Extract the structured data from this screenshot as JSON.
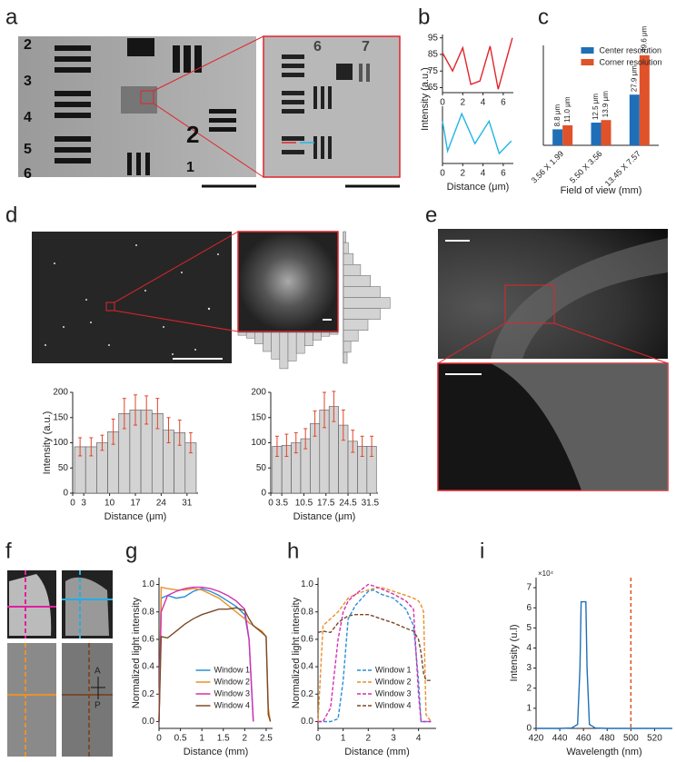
{
  "panels": [
    "a",
    "b",
    "c",
    "d",
    "e",
    "f",
    "g",
    "h",
    "i"
  ],
  "image_text": {
    "a": [
      "2",
      "3",
      "4",
      "5",
      "6",
      "2",
      "1"
    ],
    "a_inset": [
      "6",
      "7"
    ],
    "f": [
      "A",
      "P"
    ]
  },
  "chart_data": [
    {
      "type": "line",
      "x": [
        0,
        1,
        2,
        2.8,
        3.7,
        4.7,
        5.5,
        6.9
      ],
      "series": [
        {
          "color": "#e0252b",
          "values": [
            86,
            75,
            89,
            67,
            69,
            90,
            64,
            95
          ]
        }
      ],
      "xlim": [
        0,
        7
      ],
      "ylim": [
        62,
        97
      ],
      "xticks": [
        0,
        2,
        4,
        6
      ],
      "yticks": [
        65,
        75,
        85,
        95
      ]
    },
    {
      "type": "line",
      "x": [
        0,
        0.5,
        1.9,
        3.2,
        4.6,
        5.6,
        6.8
      ],
      "series": [
        {
          "color": "#22b5e6",
          "values": [
            87,
            75,
            90,
            78,
            87,
            74,
            79
          ]
        }
      ],
      "xlim": [
        0,
        7
      ],
      "ylim": [
        70,
        93
      ],
      "xticks": [
        0,
        2,
        4,
        6
      ],
      "xlabel": "Distance (μm)",
      "ylabel": "Intensity (a.u.)"
    },
    {
      "type": "bar",
      "categories": [
        "3.56 X 1.99",
        "5.50 X 3.56",
        "13.45 X 7.57"
      ],
      "series": [
        {
          "name": "Center resolution",
          "color": "#1f6fb8",
          "values": [
            8.8,
            12.5,
            27.9
          ],
          "value_labels": [
            "8.8 μm",
            "12.5 μm",
            "27.9 μm"
          ]
        },
        {
          "name": "Corner resolution",
          "color": "#e0522a",
          "values": [
            11.0,
            13.9,
            49.6
          ],
          "value_labels": [
            "11.0 μm",
            "13.9 μm",
            "49.6 μm"
          ]
        }
      ],
      "ylim": [
        0,
        55
      ],
      "xlabel": "Field of view (mm)",
      "legend": "upper center"
    },
    {
      "type": "bar",
      "orientation": "horizontal",
      "values": [
        2,
        4,
        8,
        14,
        22,
        30,
        38,
        30,
        20,
        12,
        6,
        3
      ],
      "xlim": [
        0,
        40
      ],
      "color": "#d3d3d3"
    },
    {
      "type": "bar",
      "direction": "down",
      "values": [
        3,
        6,
        12,
        20,
        28,
        38,
        30,
        22,
        14,
        8,
        4,
        2
      ],
      "ylim": [
        0,
        40
      ],
      "color": "#d3d3d3"
    },
    {
      "type": "bar",
      "x": [
        2,
        5,
        8,
        11,
        14,
        17,
        20,
        23,
        26,
        29,
        32
      ],
      "values": [
        92,
        92,
        100,
        122,
        158,
        165,
        165,
        158,
        125,
        120,
        100
      ],
      "errors": [
        18,
        18,
        15,
        25,
        30,
        30,
        28,
        30,
        25,
        25,
        20
      ],
      "color": "#d3d3d3",
      "error_color": "#e0452b",
      "xlim": [
        0,
        34
      ],
      "ylim": [
        0,
        200
      ],
      "xticks": [
        0,
        3,
        10,
        17,
        24,
        31
      ],
      "yticks": [
        0,
        50,
        100,
        150,
        200
      ],
      "xlabel": "Distance (μm)",
      "ylabel": "Intensity (a.u.)"
    },
    {
      "type": "bar",
      "x": [
        2,
        5,
        8,
        11,
        14,
        17,
        20,
        23,
        26,
        29,
        32
      ],
      "values": [
        93,
        95,
        100,
        108,
        138,
        165,
        172,
        135,
        103,
        93,
        93
      ],
      "errors": [
        20,
        22,
        20,
        20,
        25,
        35,
        30,
        30,
        22,
        20,
        20
      ],
      "color": "#d3d3d3",
      "error_color": "#e0452b",
      "xlim": [
        0,
        34
      ],
      "ylim": [
        0,
        200
      ],
      "xticks": [
        0,
        3.5,
        10.5,
        17.5,
        24.5,
        31.5
      ],
      "yticks": [
        0,
        50,
        100,
        150,
        200
      ],
      "xlabel": "Distance (μm)"
    },
    {
      "type": "line",
      "x": [
        0,
        0.05,
        0.2,
        0.4,
        0.6,
        0.8,
        1.0,
        1.2,
        1.4,
        1.6,
        1.8,
        2.0,
        2.1,
        2.2,
        2.4,
        2.5,
        2.55,
        2.6
      ],
      "series": [
        {
          "name": "Window 1",
          "color": "#2a8fd6",
          "values": [
            0,
            0.9,
            0.92,
            0.9,
            0.91,
            0.95,
            0.97,
            0.95,
            0.92,
            0.88,
            0.84,
            0.78,
            0.6,
            0,
            null,
            null,
            null,
            null
          ]
        },
        {
          "name": "Window 2",
          "color": "#e8912c",
          "values": [
            0,
            0.98,
            0.97,
            0.96,
            0.96,
            0.97,
            0.96,
            0.93,
            0.9,
            0.85,
            0.8,
            0.75,
            0.72,
            0.7,
            0.66,
            0.62,
            0.1,
            0
          ]
        },
        {
          "name": "Window 3",
          "color": "#d62fb0",
          "values": [
            0,
            0.8,
            0.92,
            0.95,
            0.97,
            0.98,
            0.98,
            0.97,
            0.95,
            0.92,
            0.88,
            0.82,
            0.6,
            0,
            null,
            null,
            null,
            null
          ]
        },
        {
          "name": "Window 4",
          "color": "#7a4a2a",
          "values": [
            0,
            0.62,
            0.61,
            0.66,
            0.71,
            0.75,
            0.78,
            0.8,
            0.82,
            0.82,
            0.83,
            0.81,
            0.75,
            0.7,
            0.65,
            0.62,
            0.05,
            0
          ]
        }
      ],
      "xlim": [
        0,
        2.65
      ],
      "ylim": [
        -0.05,
        1.05
      ],
      "xticks": [
        0,
        0.5,
        1,
        1.5,
        2,
        2.5
      ],
      "yticks": [
        {
          "value": 0,
          "label": "0.0"
        },
        0.2,
        0.4,
        0.6,
        0.8,
        {
          "value": 1,
          "label": "1.0"
        }
      ],
      "xlabel": "Distance (mm)",
      "ylabel": "Normalized light intensity",
      "legend": "lower center"
    },
    {
      "type": "line",
      "dashed": true,
      "x": [
        0,
        0.2,
        0.5,
        0.8,
        1.0,
        1.2,
        1.5,
        2.0,
        2.2,
        2.5,
        3.0,
        3.5,
        3.8,
        4.0,
        4.1,
        4.2,
        4.3,
        4.5
      ],
      "series": [
        {
          "name": "Window 1",
          "color": "#2a8fd6",
          "values": [
            0,
            0,
            0,
            0.02,
            0.3,
            0.75,
            0.85,
            0.95,
            0.96,
            0.93,
            0.9,
            0.82,
            0.7,
            0.3,
            0,
            0,
            0,
            0
          ]
        },
        {
          "name": "Window 2",
          "color": "#e8912c",
          "values": [
            0,
            0.7,
            0.75,
            0.8,
            0.85,
            0.9,
            0.93,
            0.96,
            0.97,
            0.98,
            0.95,
            0.92,
            0.9,
            0.88,
            0.85,
            0.8,
            0.05,
            0
          ]
        },
        {
          "name": "Window 3",
          "color": "#d62fb0",
          "values": [
            0,
            0,
            0.1,
            0.6,
            0.8,
            0.88,
            0.93,
            1.0,
            0.99,
            0.97,
            0.93,
            0.88,
            0.82,
            0.2,
            0,
            0,
            0,
            0
          ]
        },
        {
          "name": "Window 4",
          "color": "#7a4a2a",
          "values": [
            0.65,
            0.66,
            0.65,
            0.72,
            0.75,
            0.77,
            0.78,
            0.78,
            0.77,
            0.75,
            0.72,
            0.68,
            0.66,
            0.6,
            0.5,
            0.35,
            0.3,
            0.3
          ]
        }
      ],
      "xlim": [
        0,
        4.7
      ],
      "ylim": [
        -0.05,
        1.05
      ],
      "xticks": [
        0,
        1,
        2,
        3,
        4
      ],
      "yticks": [
        {
          "value": 0,
          "label": "0.0"
        },
        0.2,
        0.4,
        0.6,
        0.8,
        {
          "value": 1,
          "label": "1.0"
        }
      ],
      "xlabel": "Distance (mm)",
      "ylabel": "Normalized light intensity",
      "legend": "lower center"
    },
    {
      "type": "line",
      "x": [
        420,
        440,
        450,
        455,
        457,
        458,
        460,
        462,
        463,
        465,
        470,
        480,
        500,
        535
      ],
      "series": [
        {
          "color": "#1f6fb8",
          "values": [
            0,
            0,
            200,
            2000,
            30000,
            63000,
            63000,
            63000,
            30000,
            2000,
            200,
            0,
            0,
            0
          ]
        }
      ],
      "vlines": [
        {
          "x": 500,
          "color": "#d9541e"
        }
      ],
      "xlim": [
        420,
        535
      ],
      "ylim": [
        0,
        75000
      ],
      "xticks": [
        420,
        440,
        460,
        480,
        500,
        520
      ],
      "yticks": [
        0,
        {
          "value": 10000,
          "label": "1"
        },
        {
          "value": 20000,
          "label": "2"
        },
        {
          "value": 30000,
          "label": "3"
        },
        {
          "value": 40000,
          "label": "4"
        },
        {
          "value": 50000,
          "label": "5"
        },
        {
          "value": 60000,
          "label": "6"
        },
        {
          "value": 70000,
          "label": "7"
        }
      ],
      "y_multiplier": "×10⁴",
      "xlabel": "Wavelength (nm)",
      "ylabel": "Intensity (u.l)"
    }
  ]
}
